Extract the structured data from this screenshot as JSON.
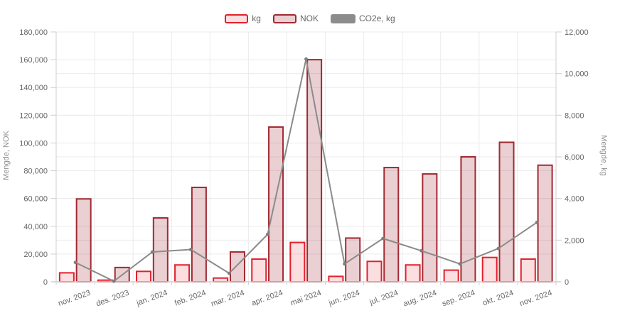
{
  "colors": {
    "background": "#FFFFFF",
    "grid": "#EBEBEB",
    "axis": "#CFCFCF",
    "tick_label": "#666666",
    "axis_title": "#8F8F8F",
    "legend_label": "#666666"
  },
  "chart_data": {
    "type": "bar",
    "subtype": "combo-dual-axis",
    "categories": [
      "nov. 2023",
      "des. 2023",
      "jan. 2024",
      "feb. 2024",
      "mar. 2024",
      "apr. 2024",
      "mai 2024",
      "jun. 2024",
      "jul. 2024",
      "aug. 2024",
      "sep. 2024",
      "okt. 2024",
      "nov. 2024"
    ],
    "series": [
      {
        "name": "kg",
        "type": "bar",
        "axis": "right",
        "fill": "rgba(227,32,44,0.15)",
        "stroke": "#E2202C",
        "values": [
          430,
          80,
          500,
          810,
          180,
          1090,
          1890,
          260,
          980,
          810,
          560,
          1170,
          1090
        ]
      },
      {
        "name": "NOK",
        "type": "bar",
        "axis": "left",
        "fill": "rgba(161,42,51,0.22)",
        "stroke": "#A12A33",
        "values": [
          59700,
          10300,
          46000,
          68000,
          21500,
          111500,
          160000,
          31500,
          82300,
          77700,
          90000,
          100500,
          84000
        ]
      },
      {
        "name": "CO2e, kg",
        "type": "line",
        "axis": "right",
        "stroke": "#8B8B8B",
        "marker_color": "#7E7E7E",
        "values": [
          930,
          30,
          1430,
          1550,
          410,
          2280,
          10700,
          860,
          2080,
          1490,
          860,
          1600,
          2850
        ]
      }
    ],
    "left_axis": {
      "title": "Mengde, NOK",
      "min": 0,
      "max": 180000,
      "step": 20000,
      "tick_labels": [
        "0",
        "20,000",
        "40,000",
        "60,000",
        "80,000",
        "100,000",
        "120,000",
        "140,000",
        "160,000",
        "180,000"
      ]
    },
    "right_axis": {
      "title": "Mengde, kg",
      "min": 0,
      "max": 12000,
      "step": 2000,
      "tick_labels": [
        "0",
        "2,000",
        "4,000",
        "6,000",
        "8,000",
        "10,000",
        "12,000"
      ]
    },
    "grid": true,
    "legend_position": "top"
  }
}
